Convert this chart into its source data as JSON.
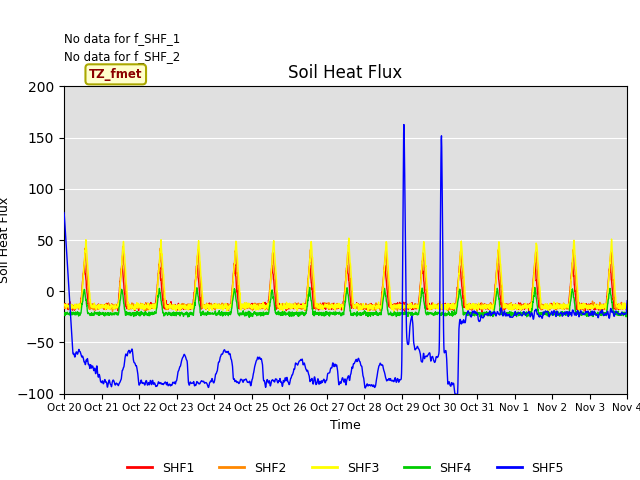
{
  "title": "Soil Heat Flux",
  "ylabel": "Soil Heat Flux",
  "xlabel": "Time",
  "ylim": [
    -100,
    200
  ],
  "annotation_text1": "No data for f_SHF_1",
  "annotation_text2": "No data for f_SHF_2",
  "tz_label": "TZ_fmet",
  "colors": {
    "SHF1": "#ff0000",
    "SHF2": "#ff8800",
    "SHF3": "#ffff00",
    "SHF4": "#00cc00",
    "SHF5": "#0000ff"
  },
  "bg_color": "#e0e0e0",
  "n_days": 15,
  "tick_labels": [
    "Oct 20",
    "Oct 21",
    "Oct 22",
    "Oct 23",
    "Oct 24",
    "Oct 25",
    "Oct 26",
    "Oct 27",
    "Oct 28",
    "Oct 29",
    "Oct 30",
    "Oct 31",
    "Nov 1",
    "Nov 2",
    "Nov 3",
    "Nov 4"
  ]
}
